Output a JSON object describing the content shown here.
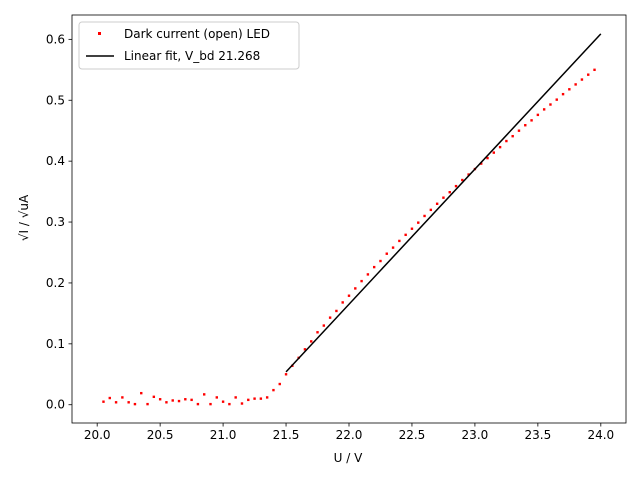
{
  "chart_data": {
    "type": "scatter",
    "xlabel": "U / V",
    "ylabel": "√I / √uA",
    "xlim": [
      19.8,
      24.2
    ],
    "ylim": [
      -0.03,
      0.64
    ],
    "x_ticks": [
      "20.0",
      "20.5",
      "21.0",
      "21.5",
      "22.0",
      "22.5",
      "23.0",
      "23.5",
      "24.0"
    ],
    "y_ticks": [
      "0.0",
      "0.1",
      "0.2",
      "0.3",
      "0.4",
      "0.5",
      "0.6"
    ],
    "legend_position": "upper-left",
    "series": [
      {
        "name": "Dark current (open) LED",
        "kind": "scatter",
        "color": "#ff0000",
        "x": [
          20.05,
          20.1,
          20.15,
          20.2,
          20.25,
          20.3,
          20.35,
          20.4,
          20.45,
          20.5,
          20.55,
          20.6,
          20.65,
          20.7,
          20.75,
          20.8,
          20.85,
          20.9,
          20.95,
          21.0,
          21.05,
          21.1,
          21.15,
          21.2,
          21.25,
          21.3,
          21.35,
          21.4,
          21.45,
          21.5,
          21.55,
          21.6,
          21.65,
          21.7,
          21.75,
          21.8,
          21.85,
          21.9,
          21.95,
          22.0,
          22.05,
          22.1,
          22.15,
          22.2,
          22.25,
          22.3,
          22.35,
          22.4,
          22.45,
          22.5,
          22.55,
          22.6,
          22.65,
          22.7,
          22.75,
          22.8,
          22.85,
          22.9,
          22.95,
          23.0,
          23.05,
          23.1,
          23.15,
          23.2,
          23.25,
          23.3,
          23.35,
          23.4,
          23.45,
          23.5,
          23.55,
          23.6,
          23.65,
          23.7,
          23.75,
          23.8,
          23.85,
          23.9,
          23.95
        ],
        "y": [
          0.005,
          0.011,
          0.004,
          0.012,
          0.004,
          0.001,
          0.019,
          0.001,
          0.013,
          0.009,
          0.004,
          0.007,
          0.006,
          0.009,
          0.008,
          0.001,
          0.017,
          0.001,
          0.012,
          0.005,
          0.001,
          0.012,
          0.002,
          0.008,
          0.01,
          0.01,
          0.012,
          0.024,
          0.034,
          0.05,
          0.064,
          0.077,
          0.091,
          0.104,
          0.119,
          0.13,
          0.143,
          0.154,
          0.168,
          0.179,
          0.191,
          0.203,
          0.214,
          0.226,
          0.236,
          0.248,
          0.258,
          0.269,
          0.279,
          0.289,
          0.299,
          0.31,
          0.32,
          0.33,
          0.34,
          0.349,
          0.359,
          0.369,
          0.378,
          0.387,
          0.396,
          0.405,
          0.414,
          0.423,
          0.433,
          0.441,
          0.45,
          0.459,
          0.467,
          0.476,
          0.485,
          0.493,
          0.501,
          0.51,
          0.518,
          0.526,
          0.534,
          0.542,
          0.55
        ]
      },
      {
        "name": "Linear fit, V_bd 21.268",
        "kind": "line",
        "color": "#000000",
        "x": [
          21.5,
          24.0
        ],
        "y": [
          0.054,
          0.609
        ]
      }
    ]
  }
}
